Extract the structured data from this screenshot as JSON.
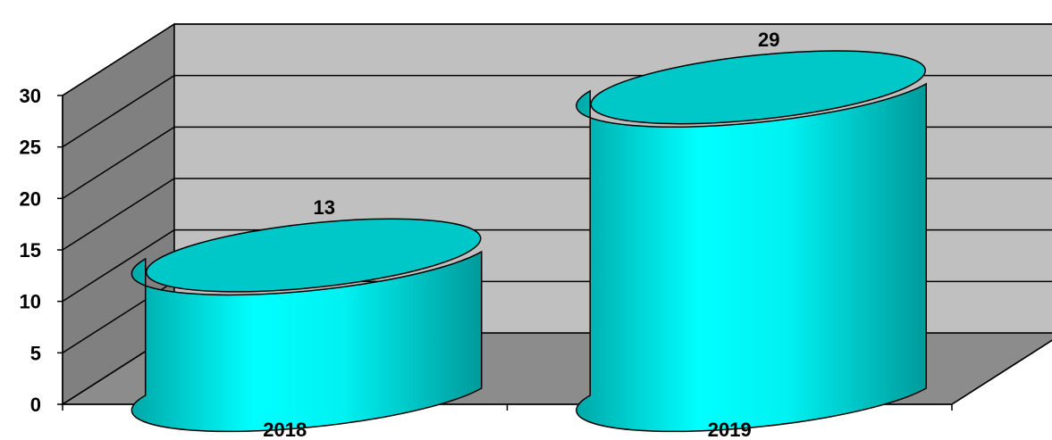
{
  "chart_data": {
    "type": "bar",
    "style": "3d-cylinder",
    "categories": [
      "2018",
      "2019"
    ],
    "values": [
      13,
      29
    ],
    "data_labels": [
      "13",
      "29"
    ],
    "title": "",
    "xlabel": "",
    "ylabel": "",
    "ylim": [
      0,
      30
    ],
    "yticks": [
      0,
      5,
      10,
      15,
      20,
      25,
      30
    ],
    "ytick_labels": [
      "0",
      "5",
      "10",
      "15",
      "20",
      "25",
      "30"
    ],
    "grid": true,
    "legend": "none",
    "colors": {
      "bar": "#00e0e0",
      "bar_top": "#00c8c8",
      "back_wall": "#c0c0c0",
      "side_wall": "#808080",
      "floor": "#8c8c8c",
      "gridline": "#000000"
    }
  }
}
